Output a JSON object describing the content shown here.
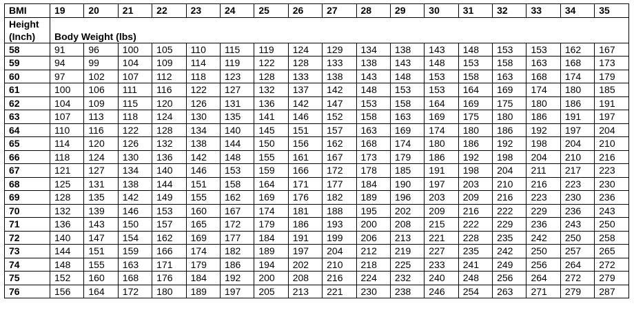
{
  "table": {
    "bmi_label": "BMI",
    "height_label_line1": "Height",
    "height_label_line2": "(Inch)",
    "weight_label": "Body Weight (lbs)",
    "bmi_values": [
      "19",
      "20",
      "21",
      "22",
      "23",
      "24",
      "25",
      "26",
      "27",
      "28",
      "29",
      "30",
      "31",
      "32",
      "33",
      "34",
      "35"
    ],
    "rows": [
      {
        "height": "58",
        "weights": [
          "91",
          "96",
          "100",
          "105",
          "110",
          "115",
          "119",
          "124",
          "129",
          "134",
          "138",
          "143",
          "148",
          "153",
          "153",
          "162",
          "167"
        ]
      },
      {
        "height": "59",
        "weights": [
          "94",
          "99",
          "104",
          "109",
          "114",
          "119",
          "122",
          "128",
          "133",
          "138",
          "143",
          "148",
          "153",
          "158",
          "163",
          "168",
          "173"
        ]
      },
      {
        "height": "60",
        "weights": [
          "97",
          "102",
          "107",
          "112",
          "118",
          "123",
          "128",
          "133",
          "138",
          "143",
          "148",
          "153",
          "158",
          "163",
          "168",
          "174",
          "179"
        ]
      },
      {
        "height": "61",
        "weights": [
          "100",
          "106",
          "111",
          "116",
          "122",
          "127",
          "132",
          "137",
          "142",
          "148",
          "153",
          "153",
          "164",
          "169",
          "174",
          "180",
          "185"
        ]
      },
      {
        "height": "62",
        "weights": [
          "104",
          "109",
          "115",
          "120",
          "126",
          "131",
          "136",
          "142",
          "147",
          "153",
          "158",
          "164",
          "169",
          "175",
          "180",
          "186",
          "191"
        ]
      },
      {
        "height": "63",
        "weights": [
          "107",
          "113",
          "118",
          "124",
          "130",
          "135",
          "141",
          "146",
          "152",
          "158",
          "163",
          "169",
          "175",
          "180",
          "186",
          "191",
          "197"
        ]
      },
      {
        "height": "64",
        "weights": [
          "110",
          "116",
          "122",
          "128",
          "134",
          "140",
          "145",
          "151",
          "157",
          "163",
          "169",
          "174",
          "180",
          "186",
          "192",
          "197",
          "204"
        ]
      },
      {
        "height": "65",
        "weights": [
          "114",
          "120",
          "126",
          "132",
          "138",
          "144",
          "150",
          "156",
          "162",
          "168",
          "174",
          "180",
          "186",
          "192",
          "198",
          "204",
          "210"
        ]
      },
      {
        "height": "66",
        "weights": [
          "118",
          "124",
          "130",
          "136",
          "142",
          "148",
          "155",
          "161",
          "167",
          "173",
          "179",
          "186",
          "192",
          "198",
          "204",
          "210",
          "216"
        ]
      },
      {
        "height": "67",
        "weights": [
          "121",
          "127",
          "134",
          "140",
          "146",
          "153",
          "159",
          "166",
          "172",
          "178",
          "185",
          "191",
          "198",
          "204",
          "211",
          "217",
          "223"
        ]
      },
      {
        "height": "68",
        "weights": [
          "125",
          "131",
          "138",
          "144",
          "151",
          "158",
          "164",
          "171",
          "177",
          "184",
          "190",
          "197",
          "203",
          "210",
          "216",
          "223",
          "230"
        ]
      },
      {
        "height": "69",
        "weights": [
          "128",
          "135",
          "142",
          "149",
          "155",
          "162",
          "169",
          "176",
          "182",
          "189",
          "196",
          "203",
          "209",
          "216",
          "223",
          "230",
          "236"
        ]
      },
      {
        "height": "70",
        "weights": [
          "132",
          "139",
          "146",
          "153",
          "160",
          "167",
          "174",
          "181",
          "188",
          "195",
          "202",
          "209",
          "216",
          "222",
          "229",
          "236",
          "243"
        ]
      },
      {
        "height": "71",
        "weights": [
          "136",
          "143",
          "150",
          "157",
          "165",
          "172",
          "179",
          "186",
          "193",
          "200",
          "208",
          "215",
          "222",
          "229",
          "236",
          "243",
          "250"
        ]
      },
      {
        "height": "72",
        "weights": [
          "140",
          "147",
          "154",
          "162",
          "169",
          "177",
          "184",
          "191",
          "199",
          "206",
          "213",
          "221",
          "228",
          "235",
          "242",
          "250",
          "258"
        ]
      },
      {
        "height": "73",
        "weights": [
          "144",
          "151",
          "159",
          "166",
          "174",
          "182",
          "189",
          "197",
          "204",
          "212",
          "219",
          "227",
          "235",
          "242",
          "250",
          "257",
          "265"
        ]
      },
      {
        "height": "74",
        "weights": [
          "148",
          "155",
          "163",
          "171",
          "179",
          "186",
          "194",
          "202",
          "210",
          "218",
          "225",
          "233",
          "241",
          "249",
          "256",
          "264",
          "272"
        ]
      },
      {
        "height": "75",
        "weights": [
          "152",
          "160",
          "168",
          "176",
          "184",
          "192",
          "200",
          "208",
          "216",
          "224",
          "232",
          "240",
          "248",
          "256",
          "264",
          "272",
          "279"
        ]
      },
      {
        "height": "76",
        "weights": [
          "156",
          "164",
          "172",
          "180",
          "189",
          "197",
          "205",
          "213",
          "221",
          "230",
          "238",
          "246",
          "254",
          "263",
          "271",
          "279",
          "287"
        ]
      }
    ]
  }
}
